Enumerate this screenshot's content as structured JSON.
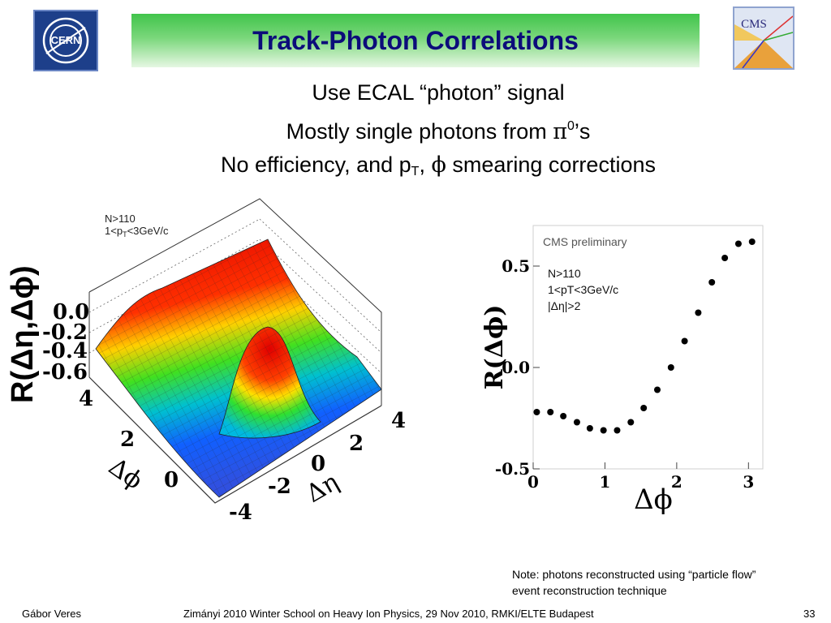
{
  "title": "Track-Photon Correlations",
  "logos": {
    "left": "CERN",
    "right": "CMS"
  },
  "bullets": {
    "line1": "Use ECAL “photon” signal",
    "line2_pre": "Mostly single photons from ",
    "line2_pi": "π",
    "line2_sup": "0",
    "line2_post": "’s",
    "line3_pre": "No efficiency, and p",
    "line3_sub": "T",
    "line3_mid": ", ",
    "line3_phi": "ϕ",
    "line3_post": " smearing corrections"
  },
  "surface_plot": {
    "label_n": "N>110",
    "label_pt_pre": "1<p",
    "label_pt_sub": "T",
    "label_pt_post": "<3GeV/c",
    "z_title": "R(Δη,Δϕ)",
    "z_ticks": [
      "0.0",
      "-0.2",
      "-0.4",
      "-0.6"
    ],
    "phi_axis_label": "Δϕ",
    "phi_ticks": [
      "4",
      "2",
      "0"
    ],
    "eta_axis_label": "Δη",
    "eta_ticks": [
      "4",
      "2",
      "0",
      "-2",
      "-4"
    ]
  },
  "chart_data": {
    "type": "scatter",
    "annotation": "CMS preliminary",
    "cuts": [
      "N>110",
      "1<pT<3GeV/c",
      "|Δη|>2"
    ],
    "xlabel": "Δϕ",
    "ylabel": "R(Δϕ)",
    "xlim": [
      0,
      3.2
    ],
    "ylim": [
      -0.5,
      0.7
    ],
    "xticks": [
      0,
      1,
      2,
      3
    ],
    "yticks": [
      -0.5,
      0.0,
      0.5
    ],
    "x": [
      0.05,
      0.24,
      0.42,
      0.61,
      0.79,
      0.98,
      1.17,
      1.36,
      1.54,
      1.73,
      1.92,
      2.11,
      2.3,
      2.49,
      2.67,
      2.86,
      3.05
    ],
    "y": [
      -0.22,
      -0.22,
      -0.24,
      -0.27,
      -0.3,
      -0.31,
      -0.31,
      -0.27,
      -0.2,
      -0.11,
      0.0,
      0.13,
      0.27,
      0.42,
      0.54,
      0.61,
      0.62
    ]
  },
  "note": {
    "line1": "Note: photons reconstructed using “particle flow”",
    "line2": "event reconstruction technique"
  },
  "footer": {
    "author": "Gábor Veres",
    "event": "Zimányi 2010 Winter School on Heavy Ion Physics, 29 Nov 2010, RMKI/ELTE Budapest",
    "page": "33"
  }
}
